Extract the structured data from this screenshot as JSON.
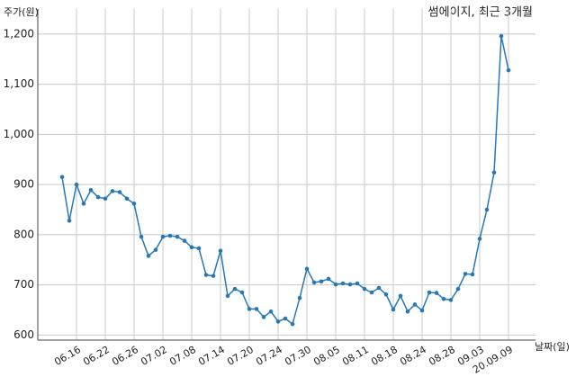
{
  "chart_data": {
    "type": "line",
    "title": "썸에이지, 최근 3개월",
    "y_label": "주가(원)",
    "x_label": "날짜(일)",
    "categories": [
      null,
      null,
      "06.16",
      null,
      null,
      null,
      "06.22",
      null,
      null,
      null,
      "06.26",
      null,
      null,
      null,
      "07.02",
      null,
      null,
      null,
      "07.08",
      null,
      null,
      null,
      "07.14",
      null,
      null,
      null,
      "07.20",
      null,
      null,
      null,
      "07.24",
      null,
      null,
      null,
      "07.30",
      null,
      null,
      null,
      "08.05",
      null,
      null,
      null,
      "08.11",
      null,
      null,
      null,
      "08.18",
      null,
      null,
      null,
      "08.24",
      null,
      null,
      null,
      "08.28",
      null,
      null,
      null,
      "09.03",
      null,
      null,
      null,
      "20.09.09"
    ],
    "series": [
      {
        "name": "주가",
        "color": "#2878b5",
        "values": [
          915,
          828,
          900,
          862,
          889,
          875,
          872,
          887,
          885,
          872,
          862,
          796,
          758,
          770,
          796,
          798,
          796,
          788,
          775,
          773,
          720,
          718,
          768,
          678,
          692,
          685,
          652,
          652,
          636,
          647,
          627,
          633,
          622,
          674,
          732,
          705,
          707,
          712,
          701,
          703,
          701,
          703,
          692,
          685,
          694,
          681,
          651,
          678,
          647,
          661,
          649,
          685,
          684,
          672,
          670,
          692,
          722,
          721,
          792,
          850,
          924,
          1196,
          1128
        ]
      }
    ],
    "ylim": [
      590,
      1250
    ],
    "yticks": [
      600,
      700,
      800,
      900,
      {
        "value": 1000,
        "label": "1,000"
      },
      {
        "value": 1100,
        "label": "1,100"
      },
      {
        "value": 1200,
        "label": "1,200"
      }
    ],
    "grid": true
  }
}
